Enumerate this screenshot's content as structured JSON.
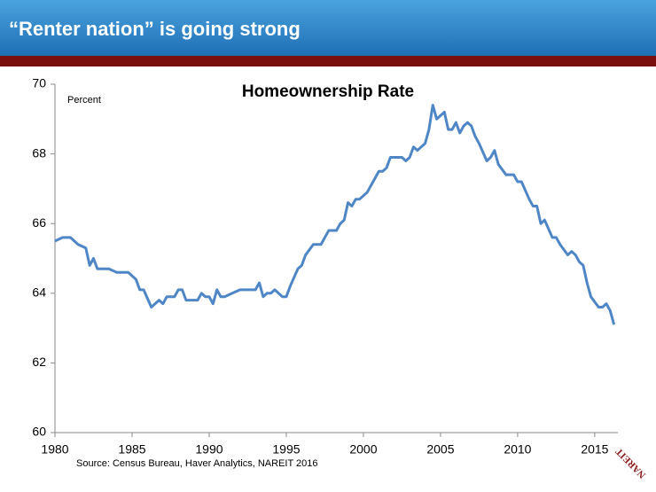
{
  "header": {
    "title": "“Renter nation” is going strong"
  },
  "chart_data": {
    "type": "line",
    "title": "Homeownership Rate",
    "y_label": "Percent",
    "source": "Source: Census Bureau, Haver Analytics, NAREIT 2016",
    "x": [
      1980,
      1980.5,
      1981,
      1981.5,
      1982,
      1982.25,
      1982.5,
      1982.75,
      1983.5,
      1984,
      1984.75,
      1985.25,
      1985.5,
      1985.75,
      1986.25,
      1986.75,
      1987,
      1987.25,
      1987.75,
      1988,
      1988.25,
      1988.5,
      1989.25,
      1989.5,
      1989.75,
      1990,
      1990.25,
      1990.5,
      1990.75,
      1991,
      1991.5,
      1992,
      1992.5,
      1993,
      1993.25,
      1993.5,
      1993.75,
      1994,
      1994.25,
      1994.75,
      1995,
      1995.25,
      1995.75,
      1996,
      1996.25,
      1996.75,
      1997.25,
      1997.75,
      1998.25,
      1998.5,
      1998.75,
      1999,
      1999.25,
      1999.5,
      1999.75,
      2000.25,
      2000.75,
      2001,
      2001.25,
      2001.5,
      2001.75,
      2002.5,
      2002.75,
      2003,
      2003.25,
      2003.5,
      2004,
      2004.25,
      2004.5,
      2004.75,
      2005,
      2005.25,
      2005.5,
      2005.75,
      2006,
      2006.25,
      2006.5,
      2006.75,
      2007,
      2007.25,
      2007.5,
      2008,
      2008.25,
      2008.5,
      2008.75,
      2009.25,
      2009.75,
      2010,
      2010.25,
      2010.75,
      2011,
      2011.25,
      2011.5,
      2011.75,
      2012.25,
      2012.5,
      2012.75,
      2013.25,
      2013.5,
      2013.75,
      2014,
      2014.25,
      2014.5,
      2014.75,
      2015.25,
      2015.5,
      2015.75,
      2016,
      2016.25
    ],
    "series": [
      {
        "name": "Homeownership Rate",
        "color": "#4f86c6",
        "values": [
          65.5,
          65.6,
          65.6,
          65.4,
          65.3,
          64.8,
          65.0,
          64.7,
          64.7,
          64.6,
          64.6,
          64.4,
          64.1,
          64.1,
          63.6,
          63.8,
          63.7,
          63.9,
          63.9,
          64.1,
          64.1,
          63.8,
          63.8,
          64.0,
          63.9,
          63.9,
          63.7,
          64.1,
          63.9,
          63.9,
          64.0,
          64.1,
          64.1,
          64.1,
          64.3,
          63.9,
          64.0,
          64.0,
          64.1,
          63.9,
          63.9,
          64.2,
          64.7,
          64.8,
          65.1,
          65.4,
          65.4,
          65.8,
          65.8,
          66.0,
          66.1,
          66.6,
          66.5,
          66.7,
          66.7,
          66.9,
          67.3,
          67.5,
          67.5,
          67.6,
          67.9,
          67.9,
          67.8,
          67.9,
          68.2,
          68.1,
          68.3,
          68.7,
          69.4,
          69.0,
          69.1,
          69.2,
          68.7,
          68.7,
          68.9,
          68.6,
          68.8,
          68.9,
          68.8,
          68.5,
          68.3,
          67.8,
          67.9,
          68.1,
          67.7,
          67.4,
          67.4,
          67.2,
          67.2,
          66.7,
          66.5,
          66.5,
          66.0,
          66.1,
          65.6,
          65.6,
          65.4,
          65.1,
          65.2,
          65.1,
          64.9,
          64.8,
          64.3,
          63.9,
          63.6,
          63.6,
          63.7,
          63.5,
          63.1
        ]
      }
    ],
    "xlim": [
      1980,
      2016.5
    ],
    "xticks": [
      1980,
      1985,
      1990,
      1995,
      2000,
      2005,
      2010,
      2015
    ],
    "ylim": [
      60,
      70
    ],
    "yticks": [
      60,
      62,
      64,
      66,
      68,
      70
    ],
    "grid": false
  },
  "logo": {
    "text": "NAREIT"
  }
}
